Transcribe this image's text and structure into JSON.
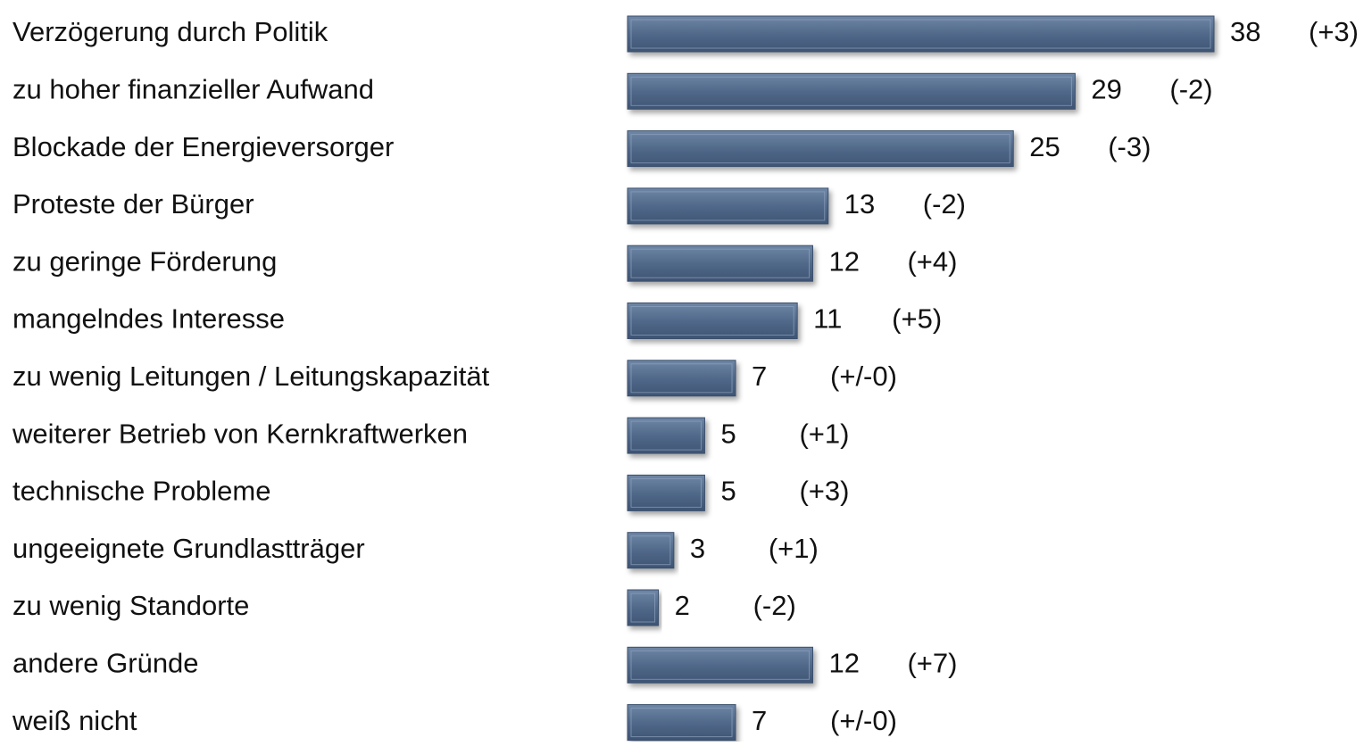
{
  "chart_data": {
    "type": "bar",
    "orientation": "horizontal",
    "categories": [
      "Verzögerung durch Politik",
      "zu hoher finanzieller Aufwand",
      "Blockade der Energieversorger",
      "Proteste der Bürger",
      "zu geringe Förderung",
      "mangelndes Interesse",
      "zu wenig Leitungen / Leitungskapazität",
      "weiterer Betrieb von Kernkraftwerken",
      "technische Probleme",
      "ungeeignete Grundlastträger",
      "zu wenig Standorte",
      "andere Gründe",
      "weiß nicht"
    ],
    "values": [
      38,
      29,
      25,
      13,
      12,
      11,
      7,
      5,
      5,
      3,
      2,
      12,
      7
    ],
    "changes": [
      "(+3)",
      "(-2)",
      "(-3)",
      "(-2)",
      "(+4)",
      "(+5)",
      "(+/-0)",
      "(+1)",
      "(+3)",
      "(+1)",
      "(-2)",
      "(+7)",
      "(+/-0)"
    ],
    "color": "#51698a"
  }
}
